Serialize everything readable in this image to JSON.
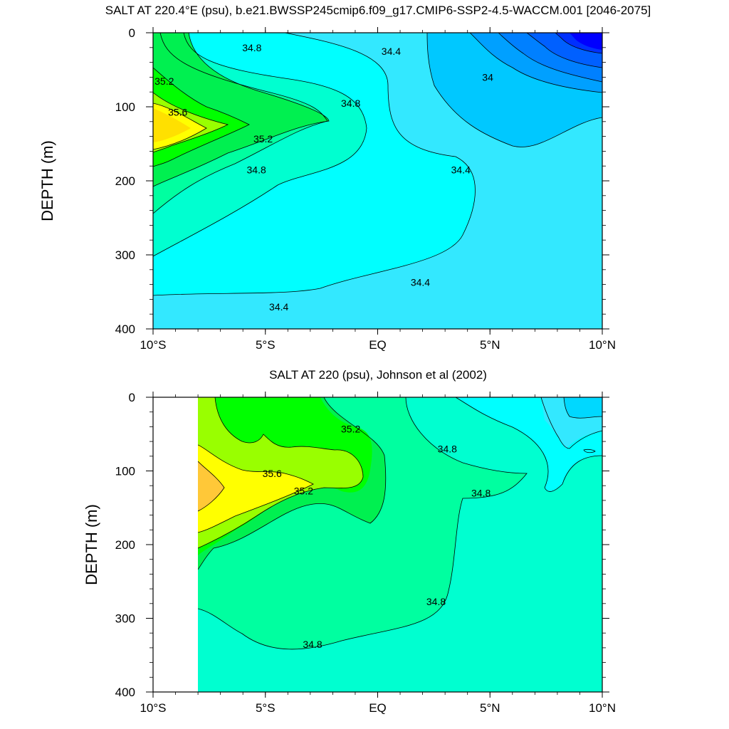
{
  "chart_data": [
    {
      "type": "contour",
      "title": "SALT AT 220.4°E (psu), b.e21.BWSSP245cmip6.f09_g17.CMIP6-SSP2-4.5-WACCM.001 [2046-2075]",
      "ylabel": "DEPTH (m)",
      "xlabel": "",
      "xticks": [
        "10°S",
        "5°S",
        "EQ",
        "5°N",
        "10°N"
      ],
      "yticks": [
        "0",
        "100",
        "200",
        "300",
        "400"
      ],
      "xlim_deg_lat": [
        -10,
        10
      ],
      "ylim_m": [
        0,
        400
      ],
      "y_reversed": true,
      "contour_interval": 0.2,
      "fill_levels": [
        {
          "value": 33.2,
          "color": "#0000ff"
        },
        {
          "value": 33.4,
          "color": "#0038ff"
        },
        {
          "value": 33.6,
          "color": "#006cff"
        },
        {
          "value": 33.8,
          "color": "#00a0ff"
        },
        {
          "value": 34.0,
          "color": "#00c8ff"
        },
        {
          "value": 34.2,
          "color": "#33e8ff"
        },
        {
          "value": 34.4,
          "color": "#00ffff"
        },
        {
          "value": 34.6,
          "color": "#00ffd0"
        },
        {
          "value": 34.8,
          "color": "#00ffa0"
        },
        {
          "value": 35.0,
          "color": "#00f050"
        },
        {
          "value": 35.2,
          "color": "#00ff00"
        },
        {
          "value": 35.4,
          "color": "#99ff00"
        },
        {
          "value": 35.6,
          "color": "#ffff00"
        }
      ],
      "contour_labels": [
        {
          "text": "34.8",
          "lat": -5.6,
          "depth": 25
        },
        {
          "text": "34.4",
          "lat": 0.6,
          "depth": 30
        },
        {
          "text": "34",
          "lat": 4.9,
          "depth": 65
        },
        {
          "text": "35.2",
          "lat": -9.5,
          "depth": 70
        },
        {
          "text": "34.8",
          "lat": -1.2,
          "depth": 100
        },
        {
          "text": "35.6",
          "lat": -8.9,
          "depth": 112
        },
        {
          "text": "35.2",
          "lat": -5.1,
          "depth": 148
        },
        {
          "text": "34.8",
          "lat": -5.4,
          "depth": 190
        },
        {
          "text": "34.4",
          "lat": 3.7,
          "depth": 190
        },
        {
          "text": "34.4",
          "lat": 1.9,
          "depth": 342
        },
        {
          "text": "34.4",
          "lat": -4.4,
          "depth": 375
        }
      ]
    },
    {
      "type": "contour",
      "title": "SALT AT 220 (psu), Johnson et al (2002)",
      "ylabel": "DEPTH (m)",
      "xlabel": "",
      "xticks": [
        "10°S",
        "5°S",
        "EQ",
        "5°N",
        "10°N"
      ],
      "yticks": [
        "0",
        "100",
        "200",
        "300",
        "400"
      ],
      "xlim_deg_lat": [
        -10,
        10
      ],
      "ylim_m": [
        0,
        400
      ],
      "y_reversed": true,
      "data_lat_range": [
        -8,
        10
      ],
      "contour_interval": 0.2,
      "fill_levels": [
        {
          "value": 34.2,
          "color": "#00d8ff"
        },
        {
          "value": 34.4,
          "color": "#33e8ff"
        },
        {
          "value": 34.6,
          "color": "#00ffff"
        },
        {
          "value": 34.8,
          "color": "#00ffd0"
        },
        {
          "value": 35.0,
          "color": "#00ffa0"
        },
        {
          "value": 35.2,
          "color": "#00f050"
        },
        {
          "value": 35.4,
          "color": "#00ff00"
        },
        {
          "value": 35.6,
          "color": "#99ff00"
        },
        {
          "value": 35.8,
          "color": "#ffff00"
        },
        {
          "value": 36.0,
          "color": "#ffc838"
        }
      ],
      "contour_labels": [
        {
          "text": "35.2",
          "lat": -1.2,
          "depth": 48
        },
        {
          "text": "34.8",
          "lat": 3.1,
          "depth": 75
        },
        {
          "text": "35.6",
          "lat": -4.7,
          "depth": 108
        },
        {
          "text": "35.2",
          "lat": -3.3,
          "depth": 132
        },
        {
          "text": "34.8",
          "lat": 4.6,
          "depth": 135
        },
        {
          "text": "34.8",
          "lat": 2.6,
          "depth": 282
        },
        {
          "text": "34.8",
          "lat": -2.9,
          "depth": 340
        }
      ]
    }
  ]
}
